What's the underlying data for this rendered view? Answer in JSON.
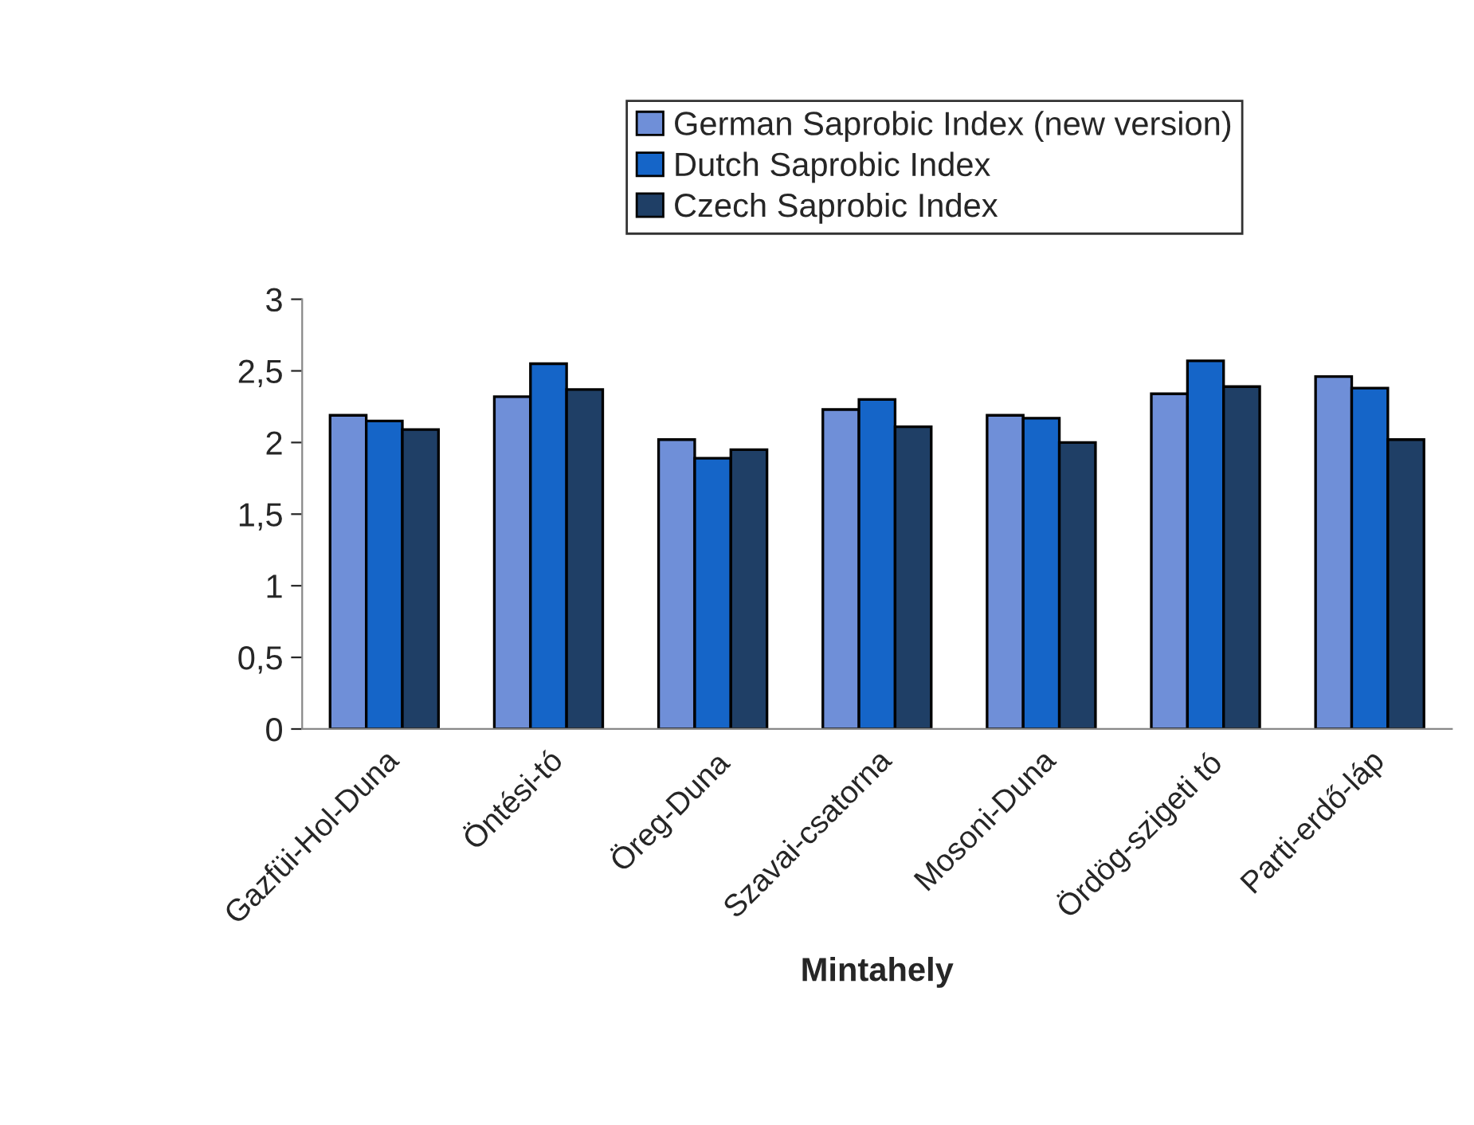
{
  "chart_data": {
    "type": "bar",
    "xlabel": "Mintahely",
    "categories": [
      "Gazfüi-Hol-Duna",
      "Öntési-tó",
      "Öreg-Duna",
      "Szavai-csatorna",
      "Mosoni-Duna",
      "Ördög-szigeti tó",
      "Parti-erdő-láp"
    ],
    "series": [
      {
        "name": "German Saprobic Index (new version)",
        "color": "#6f8fd8",
        "values": [
          2.19,
          2.32,
          2.02,
          2.23,
          2.19,
          2.34,
          2.46
        ]
      },
      {
        "name": "Dutch Saprobic Index",
        "color": "#1565c8",
        "values": [
          2.15,
          2.55,
          1.89,
          2.3,
          2.17,
          2.57,
          2.38
        ]
      },
      {
        "name": "Czech Saprobic Index",
        "color": "#1f3f66",
        "values": [
          2.09,
          2.37,
          1.95,
          2.11,
          2.0,
          2.39,
          2.02
        ]
      }
    ],
    "ylim": [
      0,
      3
    ],
    "yticks": [
      0,
      {
        "value": 0.5,
        "label": "0,5"
      },
      1,
      {
        "value": 1.5,
        "label": "1,5"
      },
      2,
      {
        "value": 2.5,
        "label": "2,5"
      },
      3
    ],
    "grid": false,
    "legend": "top"
  }
}
